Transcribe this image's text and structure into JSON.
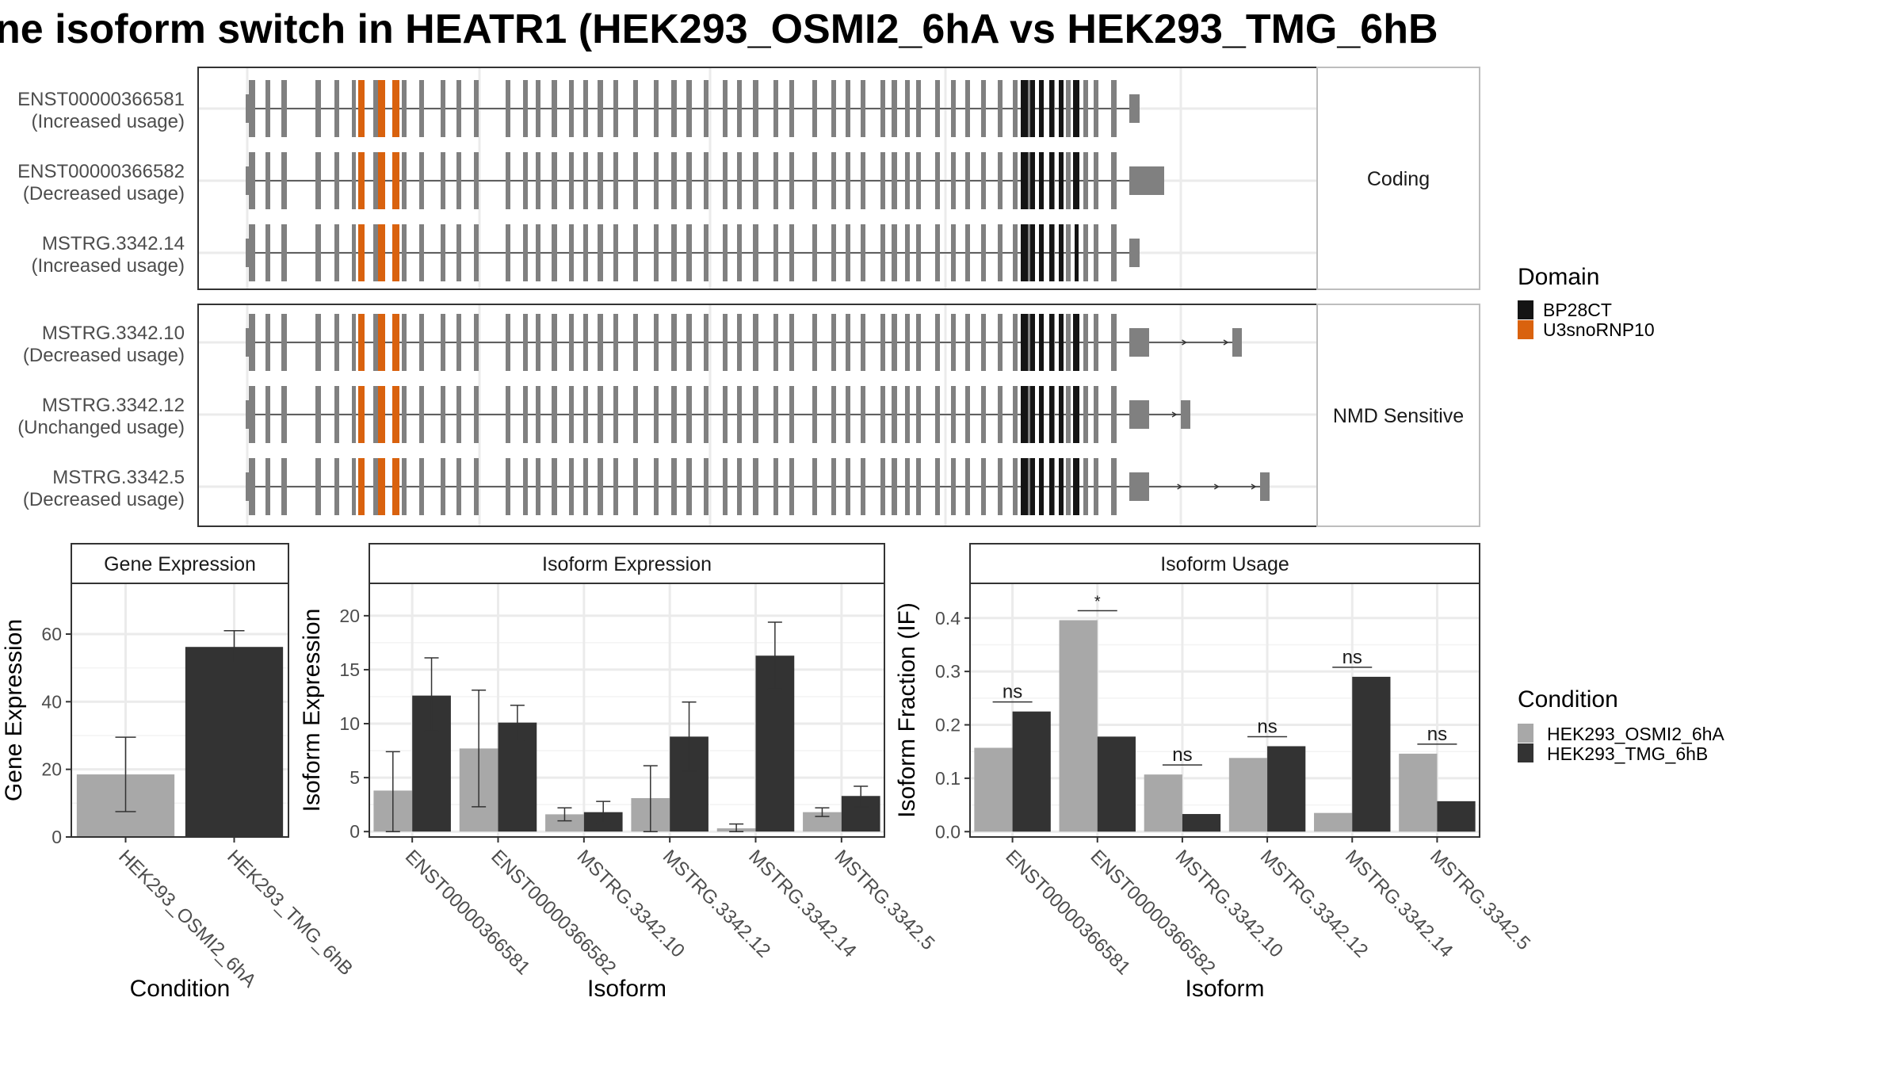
{
  "title": "ne isoform switch in HEATR1 (HEK293_OSMI2_6hA vs HEK293_TMG_6hB",
  "colors": {
    "cond_a": "#a8a8a8",
    "cond_b": "#333333",
    "exon": "#808080",
    "domain_bp28ct": "#141414",
    "domain_u3": "#d9620e",
    "panel_border": "#333333",
    "grid": "#ebebeb",
    "strip_bg": "#ffffff"
  },
  "structure": {
    "groups": [
      {
        "label": "Coding",
        "rows": [
          {
            "id": "ENST00000366581",
            "usage": "(Increased usage)",
            "tail": "short",
            "nmd": []
          },
          {
            "id": "ENST00000366582",
            "usage": "(Decreased usage)",
            "tail": "long",
            "nmd": []
          },
          {
            "id": "MSTRG.3342.14",
            "usage": "(Increased usage)",
            "tail": "short",
            "nmd": []
          }
        ]
      },
      {
        "label": "NMD Sensitive",
        "rows": [
          {
            "id": "MSTRG.3342.10",
            "usage": "(Decreased usage)",
            "tail": "nmd",
            "nmd": [
              1555
            ]
          },
          {
            "id": "MSTRG.3342.12",
            "usage": "(Unchanged usage)",
            "tail": "nmd",
            "nmd": [
              1490
            ]
          },
          {
            "id": "MSTRG.3342.5",
            "usage": "(Decreased usage)",
            "tail": "nmd",
            "nmd": [
              1590
            ]
          }
        ]
      }
    ],
    "legend": {
      "title": "Domain",
      "items": [
        {
          "name": "BP28CT",
          "color": "#141414"
        },
        {
          "name": "U3snoRNP10",
          "color": "#d9620e"
        }
      ]
    }
  },
  "condition_legend": {
    "title": "Condition",
    "items": [
      {
        "name": "HEK293_OSMI2_6hA",
        "color": "#a8a8a8"
      },
      {
        "name": "HEK293_TMG_6hB",
        "color": "#333333"
      }
    ]
  },
  "chart_data": [
    {
      "type": "bar",
      "title": "Gene Expression",
      "xlabel": "Condition",
      "ylabel": "Gene Expression",
      "ylim": [
        0,
        75
      ],
      "yticks": [
        0,
        20,
        40,
        60
      ],
      "categories": [
        "HEK293_OSMI2_6hA",
        "HEK293_TMG_6hB"
      ],
      "values": [
        18.5,
        56.2
      ],
      "err_low": [
        7.5,
        51.5
      ],
      "err_high": [
        29.5,
        61
      ]
    },
    {
      "type": "bar",
      "title": "Isoform Expression",
      "xlabel": "Isoform",
      "ylabel": "Isoform Expression",
      "ylim": [
        -0.5,
        23
      ],
      "yticks": [
        0,
        5,
        10,
        15,
        20
      ],
      "categories": [
        "ENST00000366581",
        "ENST00000366582",
        "MSTRG.3342.10",
        "MSTRG.3342.12",
        "MSTRG.3342.14",
        "MSTRG.3342.5"
      ],
      "series": [
        {
          "name": "HEK293_OSMI2_6hA",
          "values": [
            3.8,
            7.7,
            1.6,
            3.1,
            0.3,
            1.8
          ],
          "err_low": [
            0,
            2.3,
            1.0,
            0,
            0,
            1.4
          ],
          "err_high": [
            7.4,
            13.1,
            2.2,
            6.1,
            0.7,
            2.2
          ]
        },
        {
          "name": "HEK293_TMG_6hB",
          "values": [
            12.6,
            10.1,
            1.8,
            8.8,
            16.3,
            3.3
          ],
          "err_low": [
            9.3,
            8.4,
            0.8,
            5.6,
            13.2,
            2.3
          ],
          "err_high": [
            16.1,
            11.7,
            2.8,
            12.0,
            19.4,
            4.2
          ]
        }
      ]
    },
    {
      "type": "bar",
      "title": "Isoform Usage",
      "xlabel": "Isoform",
      "ylabel": "Isoform Fraction (IF)",
      "ylim": [
        -0.01,
        0.465
      ],
      "yticks": [
        0.0,
        0.1,
        0.2,
        0.3,
        0.4
      ],
      "categories": [
        "ENST00000366581",
        "ENST00000366582",
        "MSTRG.3342.10",
        "MSTRG.3342.12",
        "MSTRG.3342.14",
        "MSTRG.3342.5"
      ],
      "series": [
        {
          "name": "HEK293_OSMI2_6hA",
          "values": [
            0.157,
            0.396,
            0.107,
            0.138,
            0.035,
            0.146
          ]
        },
        {
          "name": "HEK293_TMG_6hB",
          "values": [
            0.225,
            0.178,
            0.033,
            0.16,
            0.29,
            0.057
          ]
        }
      ],
      "significance": [
        "ns",
        "*",
        "ns",
        "ns",
        "ns",
        "ns"
      ]
    }
  ]
}
